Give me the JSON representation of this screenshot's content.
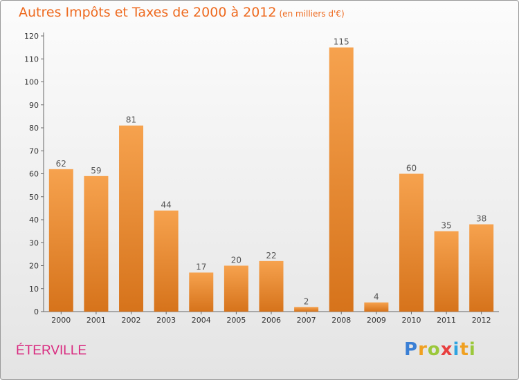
{
  "title": "Autres Impôts et Taxes de 2000 à 2012",
  "title_unit": "(en milliers d'€)",
  "commune": "ÉTERVILLE",
  "logo": {
    "letters": [
      "P",
      "r",
      "o",
      "x",
      "i",
      "t",
      "i"
    ],
    "colors": [
      "#3a7fd5",
      "#f0a020",
      "#9bc83b",
      "#e83f3f",
      "#2ea3e0",
      "#f0a020",
      "#9bc83b"
    ]
  },
  "colors": {
    "bar_light": "#f6a24e",
    "bar_dark": "#d6731b",
    "title": "#ee6a1f",
    "commune": "#d9297f"
  },
  "chart_data": {
    "type": "bar",
    "categories": [
      "2000",
      "2001",
      "2002",
      "2003",
      "2004",
      "2005",
      "2006",
      "2007",
      "2008",
      "2009",
      "2010",
      "2011",
      "2012"
    ],
    "values": [
      62,
      59,
      81,
      44,
      17,
      20,
      22,
      2,
      115,
      4,
      60,
      35,
      38
    ],
    "ylim": [
      0,
      120
    ],
    "yticks": [
      0,
      10,
      20,
      30,
      40,
      50,
      60,
      70,
      80,
      90,
      100,
      110,
      120
    ],
    "grid": false
  }
}
